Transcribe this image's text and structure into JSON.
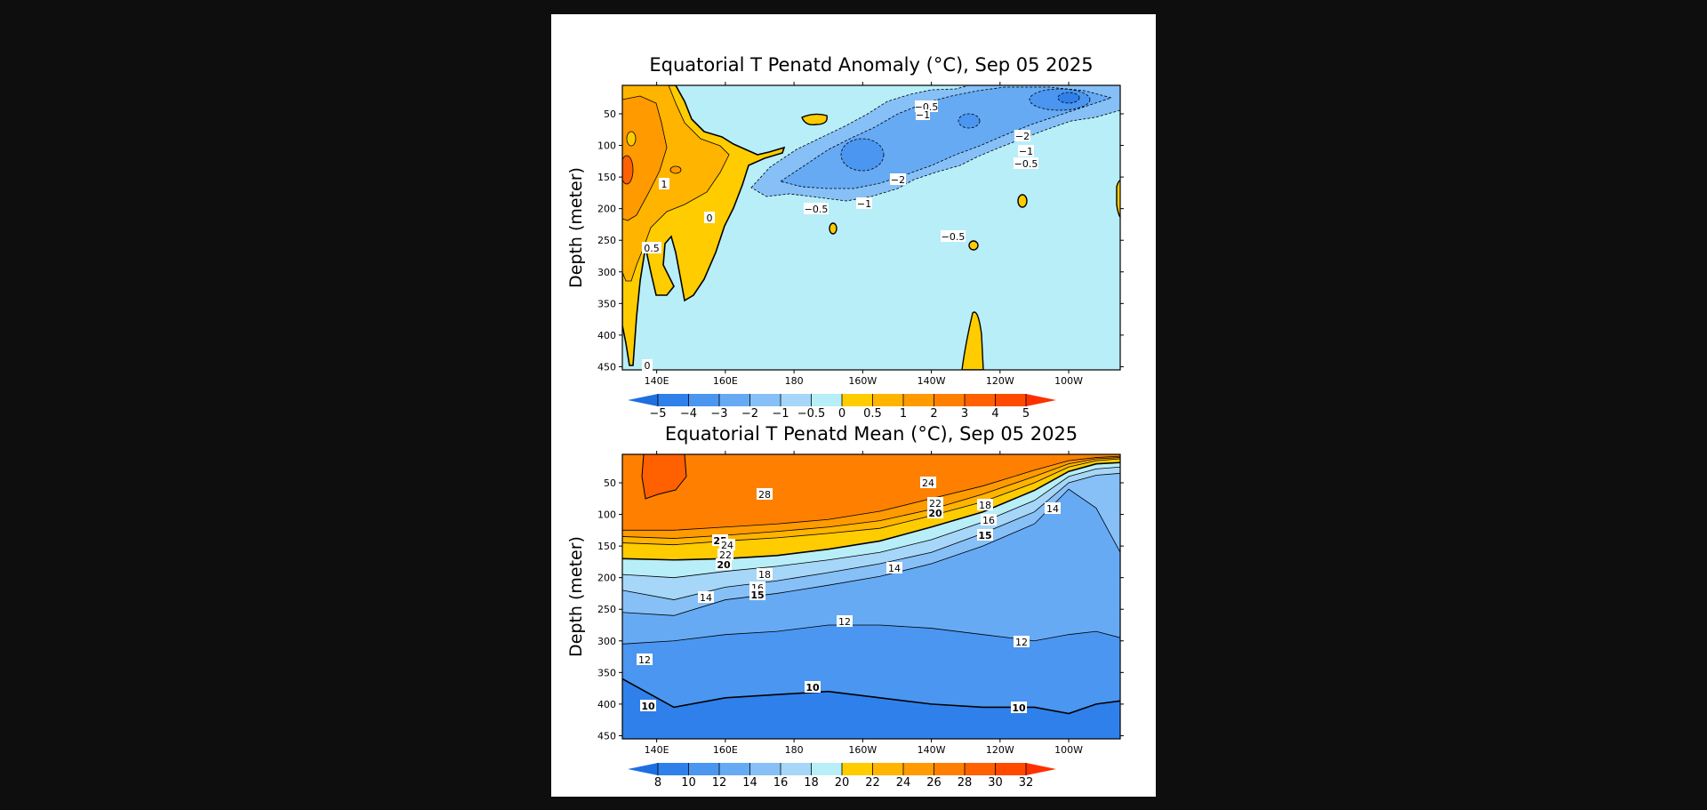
{
  "viewer": {
    "background": "#0e0e0e"
  },
  "chart_data": [
    {
      "type": "heatmap",
      "title": "Equatorial T Penatd Anomaly (°C), Sep 05 2025",
      "xlabel": "",
      "ylabel": "Depth (meter)",
      "x_ticks": [
        "140E",
        "160E",
        "180",
        "160W",
        "140W",
        "120W",
        "100W"
      ],
      "x_tick_values": [
        140,
        160,
        180,
        200,
        220,
        240,
        260
      ],
      "xlim": [
        130,
        275
      ],
      "y_ticks": [
        50,
        100,
        150,
        200,
        250,
        300,
        350,
        400,
        450
      ],
      "ylim": [
        5,
        455
      ],
      "y_inverted": true,
      "colorbar": {
        "labels": [
          "−5",
          "−4",
          "−3",
          "−2",
          "−1",
          "−0.5",
          "0",
          "0.5",
          "1",
          "2",
          "3",
          "4",
          "5"
        ],
        "colors": [
          "#1e6fe0",
          "#2f80ea",
          "#4a96f0",
          "#66aaf4",
          "#86c0f7",
          "#a6d6f8",
          "#b8eef8",
          "#ffcc00",
          "#ffb400",
          "#ff9a00",
          "#ff8000",
          "#ff6000",
          "#ff4a00",
          "#ff3000"
        ]
      },
      "contour_labels": [
        "−0.5",
        "−1",
        "−2",
        "−1",
        "−0.5",
        "−2",
        "−1",
        "−0.5",
        "−0.5",
        "1",
        "0",
        "0.5",
        "0"
      ],
      "fields": {
        "background": "#b8eef8",
        "warm_tongue": "#ffcc00",
        "warm_core": "#ffb400",
        "warm_peak": "#ff9a00",
        "hot_spot": "#ff6000",
        "cool": "#86c0f7",
        "cooler": "#66aaf4",
        "coolest": "#4a96f0"
      }
    },
    {
      "type": "heatmap",
      "title": "Equatorial T Penatd Mean (°C), Sep 05 2025",
      "xlabel": "",
      "ylabel": "Depth (meter)",
      "x_ticks": [
        "140E",
        "160E",
        "180",
        "160W",
        "140W",
        "120W",
        "100W"
      ],
      "x_tick_values": [
        140,
        160,
        180,
        200,
        220,
        240,
        260
      ],
      "xlim": [
        130,
        275
      ],
      "y_ticks": [
        50,
        100,
        150,
        200,
        250,
        300,
        350,
        400,
        450
      ],
      "ylim": [
        5,
        455
      ],
      "y_inverted": true,
      "colorbar": {
        "labels": [
          "8",
          "10",
          "12",
          "14",
          "16",
          "18",
          "20",
          "22",
          "24",
          "26",
          "28",
          "30",
          "32"
        ],
        "colors": [
          "#1e6fe0",
          "#2f80ea",
          "#4a96f0",
          "#66aaf4",
          "#86c0f7",
          "#a6d6f8",
          "#b8eef8",
          "#ffcc00",
          "#ffb400",
          "#ff9a00",
          "#ff8000",
          "#ff6000",
          "#ff4a00",
          "#ff3000"
        ]
      },
      "contour_labels": [
        "28",
        "24",
        "22",
        "20",
        "18",
        "16",
        "15",
        "14",
        "25",
        "24",
        "22",
        "20",
        "18",
        "16",
        "15",
        "14",
        "14",
        "12",
        "12",
        "12",
        "10",
        "10",
        "10"
      ],
      "isotherm_depths_m": {
        "x": [
          130,
          145,
          160,
          175,
          190,
          205,
          220,
          235,
          250,
          260,
          268,
          275
        ],
        "t28": [
          125,
          125,
          120,
          115,
          108,
          95,
          75,
          55,
          30,
          15,
          10,
          8
        ],
        "t26": [
          135,
          138,
          133,
          127,
          120,
          110,
          92,
          68,
          40,
          20,
          12,
          10
        ],
        "t24": [
          145,
          148,
          142,
          137,
          130,
          122,
          102,
          80,
          50,
          25,
          15,
          12
        ],
        "t20": [
          170,
          172,
          170,
          165,
          155,
          142,
          120,
          96,
          62,
          32,
          20,
          18
        ],
        "t18": [
          195,
          200,
          190,
          182,
          172,
          160,
          140,
          112,
          78,
          40,
          28,
          25
        ],
        "t16": [
          220,
          235,
          215,
          205,
          192,
          178,
          160,
          130,
          96,
          50,
          38,
          35
        ],
        "t14": [
          255,
          260,
          235,
          225,
          212,
          198,
          178,
          150,
          115,
          60,
          90,
          160
        ],
        "t12": [
          305,
          300,
          290,
          285,
          275,
          275,
          280,
          290,
          300,
          290,
          285,
          295
        ],
        "t10": [
          360,
          405,
          390,
          385,
          380,
          390,
          400,
          405,
          405,
          415,
          400,
          395
        ]
      }
    }
  ]
}
